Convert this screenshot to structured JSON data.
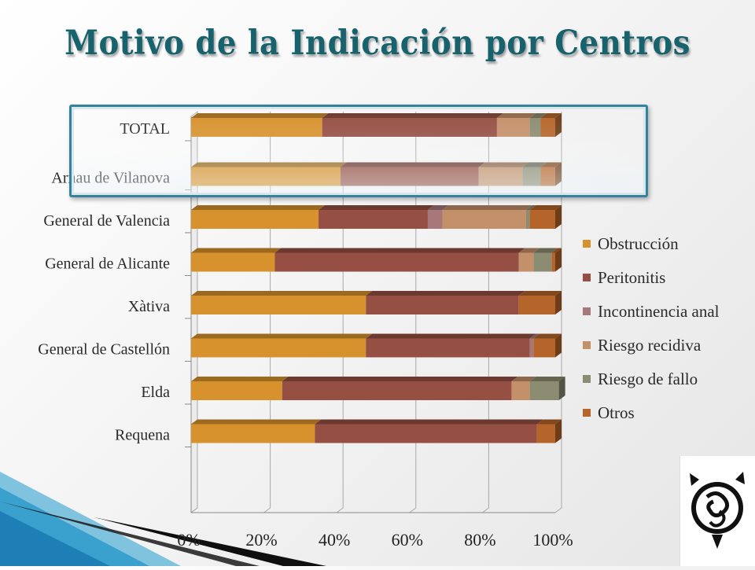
{
  "slide": {
    "title": "Motivo de la Indicación por Centros"
  },
  "chart_data": {
    "type": "bar",
    "orientation": "horizontal",
    "stacked": "percent",
    "categories": [
      "TOTAL",
      "Arnau de Vilanova",
      "General de Valencia",
      "General de Alicante",
      "Xàtiva",
      "General de Castellón",
      "Elda",
      "Requena"
    ],
    "series": [
      {
        "name": "Obstrucción",
        "color": "#D7922D",
        "values": [
          36,
          41,
          35,
          23,
          48,
          48,
          25,
          34
        ]
      },
      {
        "name": "Peritonitis",
        "color": "#954F43",
        "values": [
          48,
          38,
          30,
          67,
          42,
          45,
          63,
          61
        ]
      },
      {
        "name": "Incontinencia anal",
        "color": "#A6787A",
        "values": [
          0,
          0,
          4,
          0,
          0,
          1,
          0,
          0
        ]
      },
      {
        "name": "Riesgo recidiva",
        "color": "#C49069",
        "values": [
          9,
          12,
          23,
          4,
          0,
          0,
          5,
          0
        ]
      },
      {
        "name": "Riesgo de fallo",
        "color": "#8C8C72",
        "values": [
          3,
          5,
          1,
          5,
          0,
          0,
          8,
          0
        ]
      },
      {
        "name": "Otros",
        "color": "#B5652A",
        "values": [
          4,
          4,
          7,
          1,
          10,
          6,
          0,
          5
        ]
      }
    ],
    "xticks": [
      "0%",
      "20%",
      "40%",
      "60%",
      "80%",
      "100%"
    ],
    "xlim": [
      0,
      100
    ],
    "grid": true,
    "legend": "right",
    "highlighted_category": "TOTAL"
  }
}
